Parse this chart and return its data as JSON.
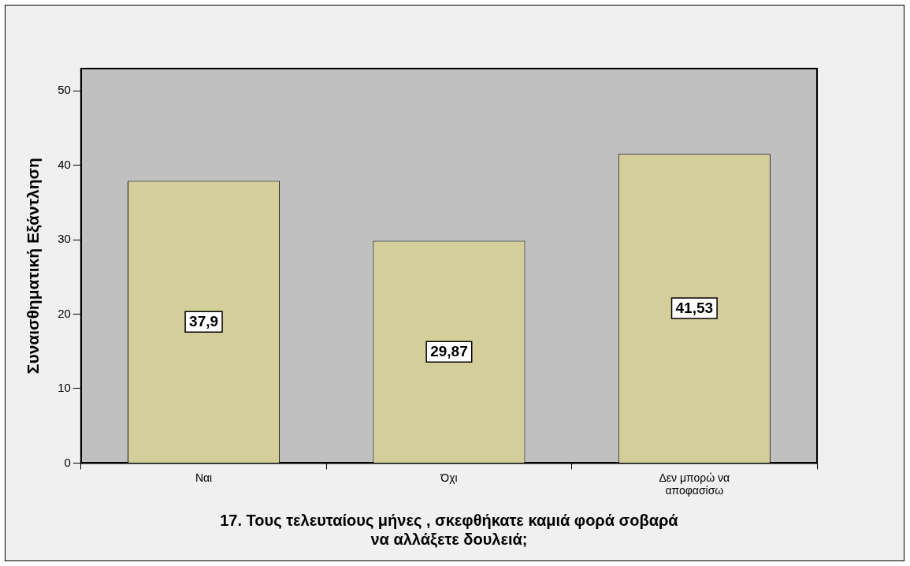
{
  "chart_data": {
    "type": "bar",
    "xlabel": "17. Τους τελευταίους μήνες , σκεφθήκατε καμιά φορά σοβαρά να αλλάξετε δουλειά;",
    "ylabel": "Συναισθηματική Εξάντληση",
    "categories": [
      "Ναι",
      "Όχι",
      "Δεν μπορώ να αποφασίσω"
    ],
    "values": [
      37.9,
      29.87,
      41.53
    ],
    "value_labels": [
      "37,9",
      "29,87",
      "41,53"
    ],
    "color": "#d4cf9a",
    "ylim": [
      0,
      53
    ],
    "yticks": [
      0,
      10,
      20,
      30,
      40,
      50
    ],
    "grid": false,
    "legend": false
  }
}
